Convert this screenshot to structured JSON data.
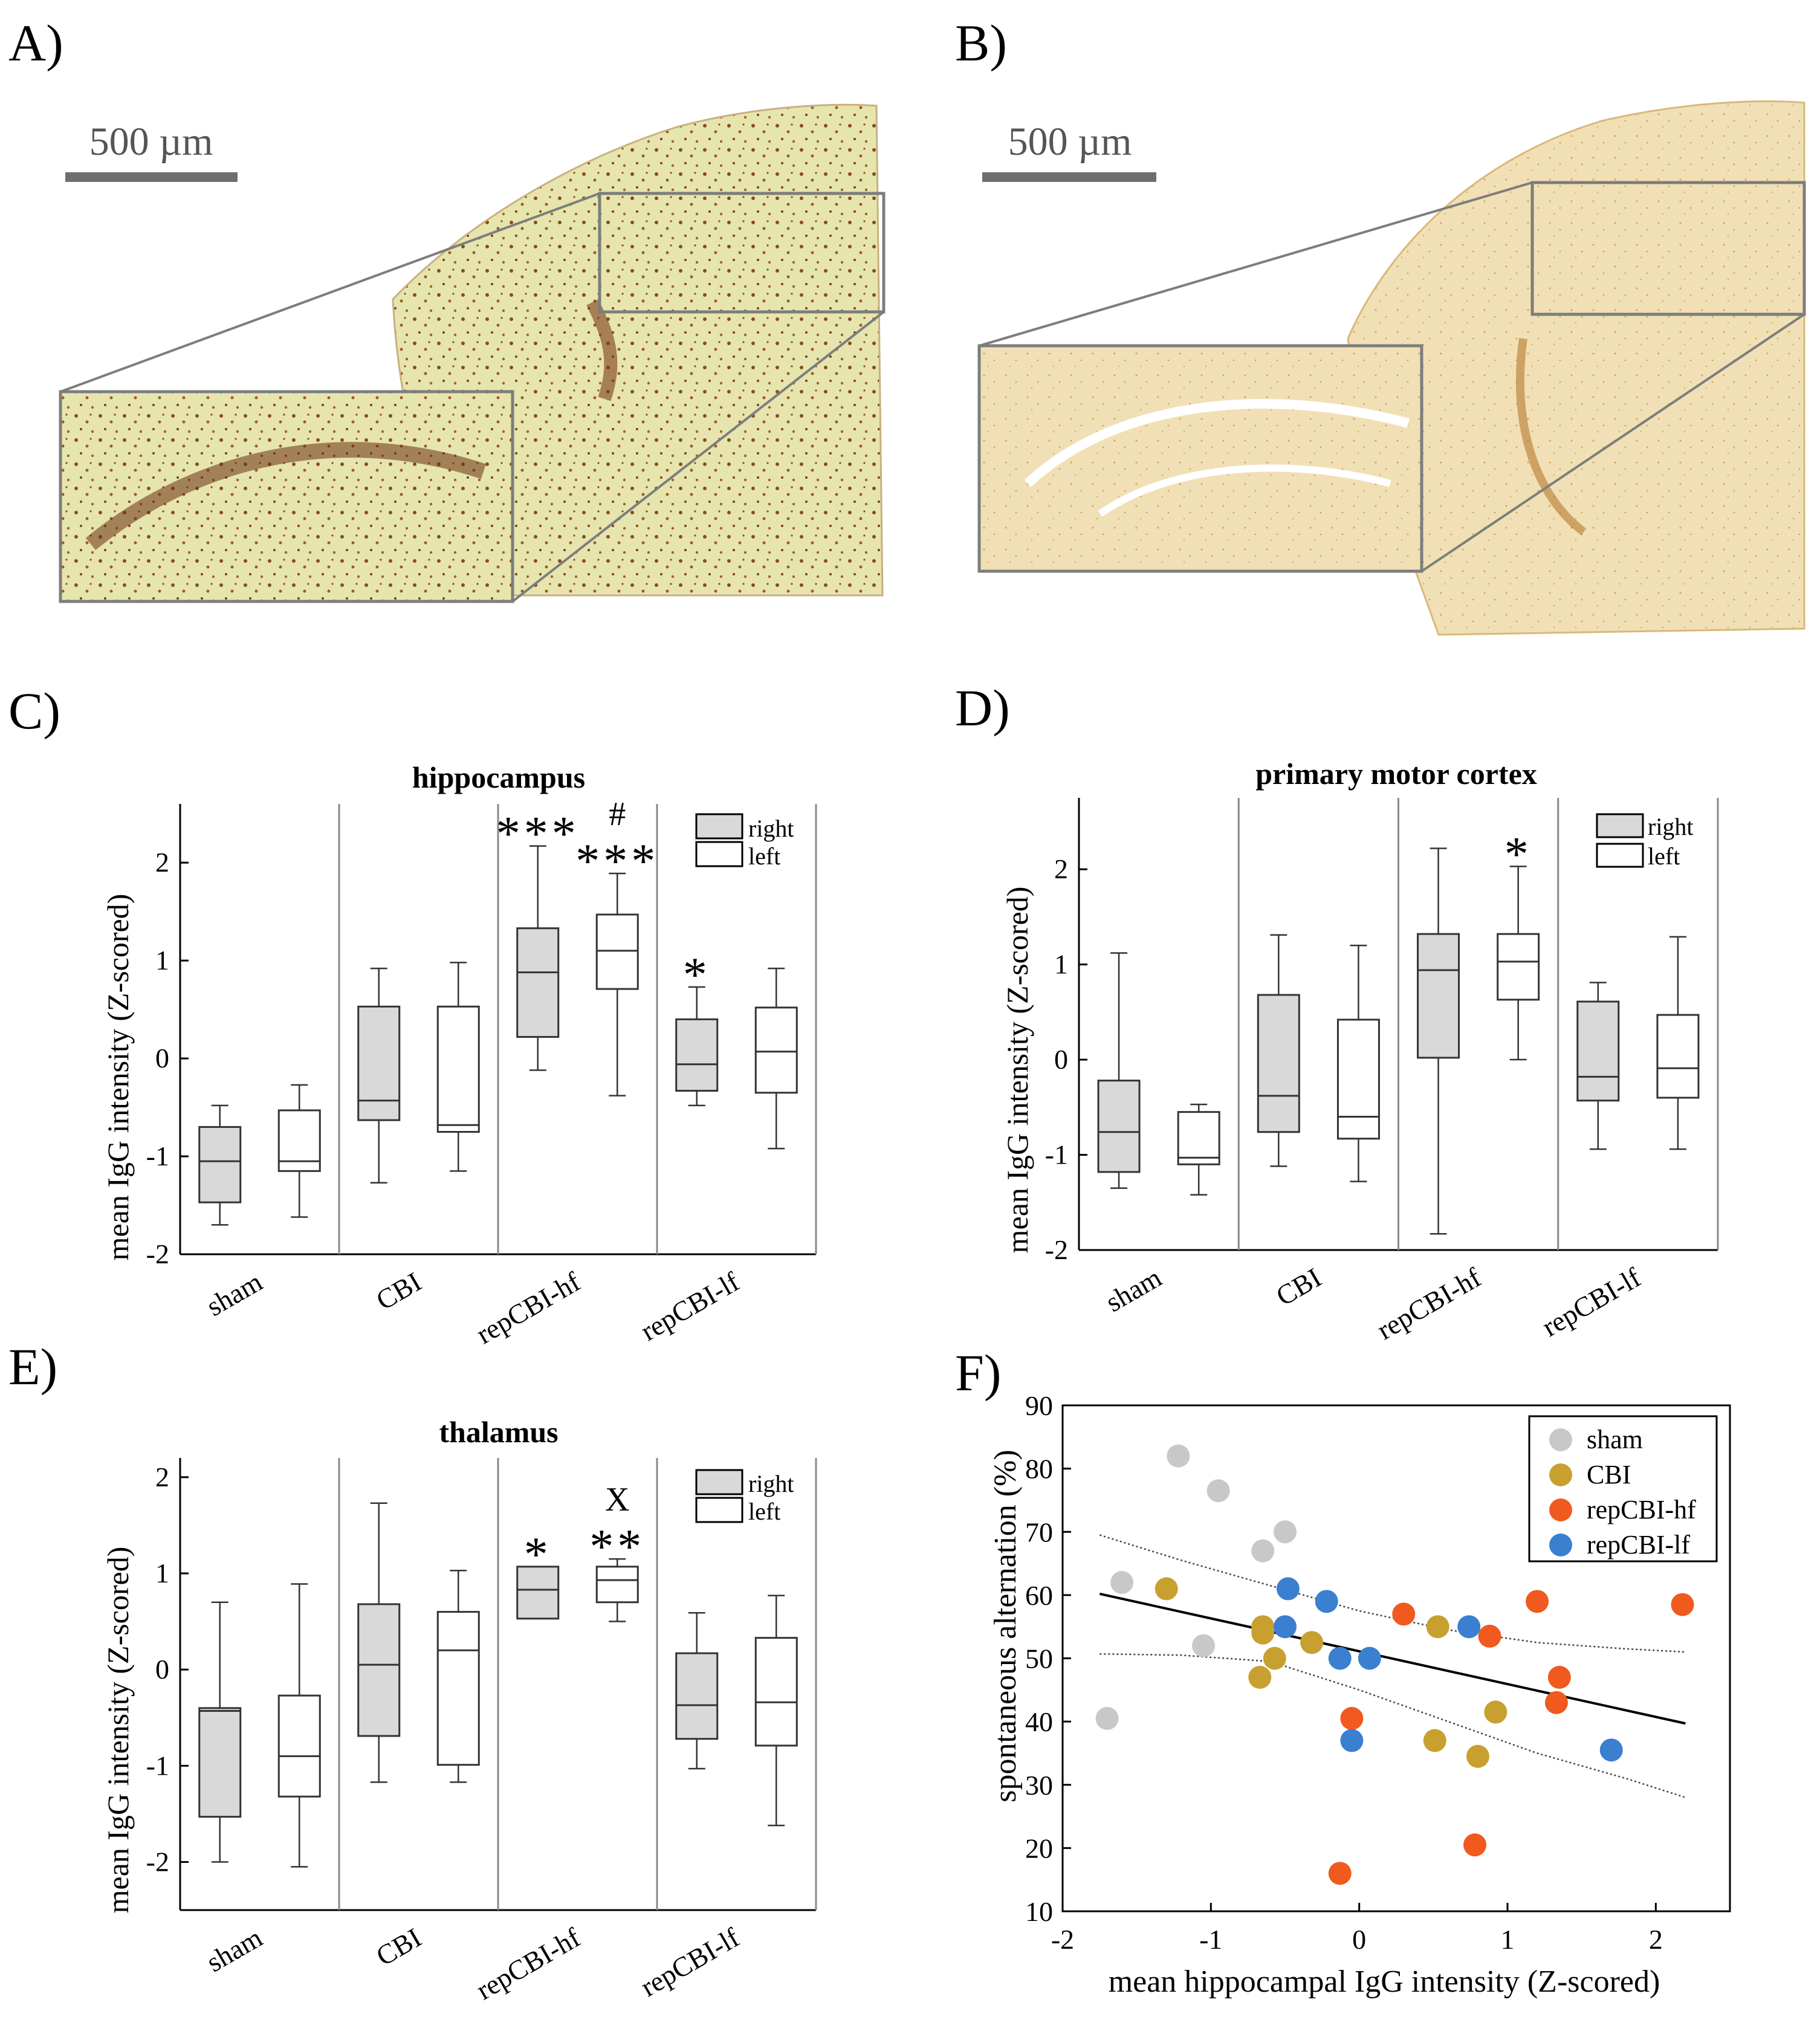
{
  "panels": {
    "A": {
      "label": "A)",
      "scale_bar": "500 µm"
    },
    "B": {
      "label": "B)",
      "scale_bar": "500 µm"
    },
    "C": {
      "label": "C)"
    },
    "D": {
      "label": "D)"
    },
    "E": {
      "label": "E)"
    },
    "F": {
      "label": "F)"
    }
  },
  "colors": {
    "box_right_fill": "#d9d9d9",
    "box_left_fill": "#ffffff",
    "sham": "#c8c8c8",
    "CBI": "#c8a030",
    "repCBI_hf": "#f05a1e",
    "repCBI_lf": "#3a7fd0",
    "tissue_A": "#e8e6b0",
    "tissue_B": "#f2e2b8"
  },
  "chart_data": [
    {
      "id": "C",
      "type": "box",
      "title": "hippocampus",
      "ylabel": "mean IgG intensity (Z-scored)",
      "ylim": [
        -2,
        2.6
      ],
      "yticks": [
        -2,
        -1,
        0,
        1,
        2
      ],
      "categories": [
        "sham",
        "CBI",
        "repCBI-hf",
        "repCBI-lf"
      ],
      "legend": {
        "position": "top-right",
        "entries": [
          "right",
          "left"
        ]
      },
      "series": [
        {
          "name": "right",
          "boxes": [
            {
              "min": -1.7,
              "q1": -1.47,
              "median": -1.05,
              "q3": -0.7,
              "max": -0.48
            },
            {
              "min": -1.27,
              "q1": -0.63,
              "median": -0.43,
              "q3": 0.53,
              "max": 0.92
            },
            {
              "min": -0.12,
              "q1": 0.22,
              "median": 0.88,
              "q3": 1.33,
              "max": 2.17
            },
            {
              "min": -0.48,
              "q1": -0.33,
              "median": -0.06,
              "q3": 0.4,
              "max": 0.73
            }
          ]
        },
        {
          "name": "left",
          "boxes": [
            {
              "min": -1.62,
              "q1": -1.15,
              "median": -1.05,
              "q3": -0.53,
              "max": -0.27
            },
            {
              "min": -1.15,
              "q1": -0.75,
              "median": -0.68,
              "q3": 0.53,
              "max": 0.98
            },
            {
              "min": -0.38,
              "q1": 0.71,
              "median": 1.1,
              "q3": 1.47,
              "max": 1.89
            },
            {
              "min": -0.92,
              "q1": -0.35,
              "median": 0.07,
              "q3": 0.52,
              "max": 0.92
            }
          ]
        }
      ],
      "annotations": [
        {
          "category": "repCBI-hf",
          "series": "right",
          "text": "***"
        },
        {
          "category": "repCBI-hf",
          "series": "left",
          "text": "***"
        },
        {
          "category": "repCBI-hf",
          "series": "left",
          "text": "#"
        },
        {
          "category": "repCBI-lf",
          "series": "right",
          "text": "*"
        }
      ]
    },
    {
      "id": "D",
      "type": "box",
      "title": "primary motor cortex",
      "ylabel": "mean IgG intensity (Z-scored)",
      "ylim": [
        -2,
        2.75
      ],
      "yticks": [
        -2,
        -1,
        0,
        1,
        2
      ],
      "categories": [
        "sham",
        "CBI",
        "repCBI-hf",
        "repCBI-lf"
      ],
      "legend": {
        "position": "top-right",
        "entries": [
          "right",
          "left"
        ]
      },
      "series": [
        {
          "name": "right",
          "boxes": [
            {
              "min": -1.35,
              "q1": -1.18,
              "median": -0.76,
              "q3": -0.22,
              "max": 1.12
            },
            {
              "min": -1.12,
              "q1": -0.76,
              "median": -0.38,
              "q3": 0.68,
              "max": 1.31
            },
            {
              "min": -1.83,
              "q1": 0.02,
              "median": 0.94,
              "q3": 1.32,
              "max": 2.22
            },
            {
              "min": -0.94,
              "q1": -0.43,
              "median": -0.18,
              "q3": 0.61,
              "max": 0.81
            }
          ]
        },
        {
          "name": "left",
          "boxes": [
            {
              "min": -1.42,
              "q1": -1.1,
              "median": -1.03,
              "q3": -0.55,
              "max": -0.47
            },
            {
              "min": -1.28,
              "q1": -0.83,
              "median": -0.6,
              "q3": 0.42,
              "max": 1.2
            },
            {
              "min": 0.0,
              "q1": 0.63,
              "median": 1.03,
              "q3": 1.32,
              "max": 2.03
            },
            {
              "min": -0.94,
              "q1": -0.4,
              "median": -0.09,
              "q3": 0.47,
              "max": 1.29
            }
          ]
        }
      ],
      "annotations": [
        {
          "category": "repCBI-hf",
          "series": "left",
          "text": "*"
        }
      ]
    },
    {
      "id": "E",
      "type": "box",
      "title": "thalamus",
      "ylabel": "mean IgG intensity (Z-scored)",
      "ylim": [
        -2.5,
        2.2
      ],
      "yticks": [
        -2,
        -1,
        0,
        1,
        2
      ],
      "categories": [
        "sham",
        "CBI",
        "repCBI-hf",
        "repCBI-lf"
      ],
      "legend": {
        "position": "top-right",
        "entries": [
          "right",
          "left"
        ]
      },
      "series": [
        {
          "name": "right",
          "boxes": [
            {
              "min": -2.0,
              "q1": -1.53,
              "median": -0.43,
              "q3": -0.4,
              "max": 0.7
            },
            {
              "min": -1.17,
              "q1": -0.69,
              "median": 0.05,
              "q3": 0.68,
              "max": 1.73
            },
            {
              "min": 0.53,
              "q1": 0.53,
              "median": 0.83,
              "q3": 1.07,
              "max": 1.07
            },
            {
              "min": -1.03,
              "q1": -0.72,
              "median": -0.37,
              "q3": 0.17,
              "max": 0.59
            }
          ]
        },
        {
          "name": "left",
          "boxes": [
            {
              "min": -2.05,
              "q1": -1.32,
              "median": -0.9,
              "q3": -0.27,
              "max": 0.89
            },
            {
              "min": -1.17,
              "q1": -0.99,
              "median": 0.2,
              "q3": 0.6,
              "max": 1.03
            },
            {
              "min": 0.5,
              "q1": 0.7,
              "median": 0.93,
              "q3": 1.07,
              "max": 1.15
            },
            {
              "min": -1.62,
              "q1": -0.79,
              "median": -0.34,
              "q3": 0.33,
              "max": 0.77
            }
          ]
        }
      ],
      "annotations": [
        {
          "category": "repCBI-hf",
          "series": "right",
          "text": "*"
        },
        {
          "category": "repCBI-hf",
          "series": "left",
          "text": "**"
        },
        {
          "category": "repCBI-hf",
          "series": "left",
          "text": "X"
        }
      ]
    },
    {
      "id": "F",
      "type": "scatter",
      "xlabel": "mean hippocampal IgG intensity (Z-scored)",
      "ylabel": "spontaneous alternation (%)",
      "xlim": [
        -2,
        2.5
      ],
      "ylim": [
        10,
        90
      ],
      "xticks": [
        -2,
        -1,
        0,
        1,
        2
      ],
      "yticks": [
        10,
        20,
        30,
        40,
        50,
        60,
        70,
        80,
        90
      ],
      "legend": {
        "position": "top-right",
        "entries": [
          "sham",
          "CBI",
          "repCBI-hf",
          "repCBI-lf"
        ]
      },
      "series": [
        {
          "name": "sham",
          "color": "#c8c8c8",
          "x": [
            -1.7,
            -1.6,
            -1.22,
            -1.05,
            -0.95,
            -0.65,
            -0.5
          ],
          "y": [
            40.5,
            62,
            82,
            52,
            76.5,
            67,
            70
          ]
        },
        {
          "name": "CBI",
          "color": "#c8a030",
          "x": [
            -1.3,
            -0.65,
            -0.65,
            -0.57,
            -0.67,
            -0.32,
            0.53,
            0.51,
            0.8,
            0.92
          ],
          "y": [
            61,
            55,
            54,
            50,
            47,
            52.5,
            55,
            37,
            34.5,
            41.5
          ]
        },
        {
          "name": "repCBI-hf",
          "color": "#f05a1e",
          "x": [
            -0.13,
            -0.05,
            0.3,
            0.78,
            0.88,
            1.2,
            1.33,
            1.35,
            2.18
          ],
          "y": [
            16,
            40.5,
            57,
            20.5,
            53.5,
            59,
            43,
            47,
            58.5
          ]
        },
        {
          "name": "repCBI-lf",
          "color": "#3a7fd0",
          "x": [
            -0.48,
            -0.5,
            -0.22,
            -0.13,
            -0.05,
            0.07,
            0.74,
            1.7
          ],
          "y": [
            61,
            55,
            59,
            50,
            37,
            50,
            55,
            35.5
          ]
        }
      ],
      "regression": {
        "x": [
          -1.75,
          2.2
        ],
        "y": [
          60.2,
          39.7
        ]
      },
      "confidence_upper": {
        "x": [
          -1.75,
          -1.2,
          -0.6,
          0.0,
          0.6,
          1.2,
          1.8,
          2.2
        ],
        "y": [
          69.5,
          65.5,
          61.5,
          57.5,
          54.5,
          52.5,
          51.5,
          51
        ]
      },
      "confidence_lower": {
        "x": [
          -1.75,
          -1.2,
          -0.6,
          0.0,
          0.6,
          1.2,
          1.8,
          2.2
        ],
        "y": [
          50.7,
          50.5,
          49.5,
          45,
          40,
          35,
          31,
          28
        ]
      }
    }
  ]
}
